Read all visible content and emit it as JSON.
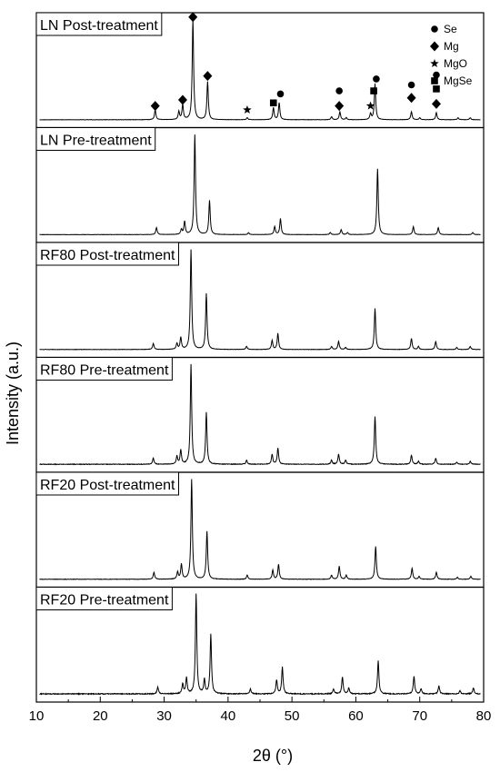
{
  "chart_data": {
    "type": "line",
    "xlabel": "2θ (°)",
    "ylabel": "Intensity (a.u.)",
    "xlim": [
      10,
      80
    ],
    "x_ticks": [
      10,
      20,
      30,
      40,
      50,
      60,
      70,
      80
    ],
    "y_ticks_shown": false,
    "grid": false,
    "legend": {
      "placement": "top-right",
      "entries": [
        {
          "name": "Se",
          "symbol": "circle"
        },
        {
          "name": "Mg",
          "symbol": "diamond"
        },
        {
          "name": "MgO",
          "symbol": "star"
        },
        {
          "name": "MgSe",
          "symbol": "square"
        }
      ]
    },
    "panels": [
      {
        "name": "LN Post-treatment",
        "noise": 0.006,
        "peaks": [
          {
            "x": 28.6,
            "h": 0.1
          },
          {
            "x": 32.3,
            "h": 0.08
          },
          {
            "x": 32.9,
            "h": 0.15
          },
          {
            "x": 34.5,
            "h": 1.0
          },
          {
            "x": 36.8,
            "h": 0.38
          },
          {
            "x": 43.0,
            "h": 0.02
          },
          {
            "x": 47.1,
            "h": 0.12
          },
          {
            "x": 48.0,
            "h": 0.17
          },
          {
            "x": 56.2,
            "h": 0.03
          },
          {
            "x": 57.5,
            "h": 0.08
          },
          {
            "x": 58.5,
            "h": 0.02
          },
          {
            "x": 62.3,
            "h": 0.06
          },
          {
            "x": 63.0,
            "h": 0.36
          },
          {
            "x": 68.7,
            "h": 0.08
          },
          {
            "x": 70.0,
            "h": 0.02
          },
          {
            "x": 72.6,
            "h": 0.07
          },
          {
            "x": 76.0,
            "h": 0.02
          },
          {
            "x": 77.9,
            "h": 0.02
          }
        ],
        "annotations": [
          {
            "symbol": "diamond",
            "x": 28.6,
            "y": 0.14
          },
          {
            "symbol": "diamond",
            "x": 32.9,
            "y": 0.2
          },
          {
            "symbol": "diamond",
            "x": 34.5,
            "y": 1.03
          },
          {
            "symbol": "diamond",
            "x": 36.8,
            "y": 0.44
          },
          {
            "symbol": "star",
            "x": 43.0,
            "y": 0.1
          },
          {
            "symbol": "square",
            "x": 47.1,
            "y": 0.17
          },
          {
            "symbol": "circle",
            "x": 48.2,
            "y": 0.26
          },
          {
            "symbol": "circle",
            "x": 57.4,
            "y": 0.29
          },
          {
            "symbol": "diamond",
            "x": 57.4,
            "y": 0.14
          },
          {
            "symbol": "star",
            "x": 62.3,
            "y": 0.14
          },
          {
            "symbol": "square",
            "x": 62.8,
            "y": 0.29
          },
          {
            "symbol": "circle",
            "x": 63.2,
            "y": 0.41
          },
          {
            "symbol": "circle",
            "x": 68.7,
            "y": 0.35
          },
          {
            "symbol": "diamond",
            "x": 68.7,
            "y": 0.22
          },
          {
            "symbol": "circle",
            "x": 72.6,
            "y": 0.45
          },
          {
            "symbol": "square",
            "x": 72.6,
            "y": 0.31
          },
          {
            "symbol": "diamond",
            "x": 72.6,
            "y": 0.16
          }
        ]
      },
      {
        "name": "LN Pre-treatment",
        "noise": 0.006,
        "peaks": [
          {
            "x": 28.8,
            "h": 0.07
          },
          {
            "x": 32.7,
            "h": 0.05
          },
          {
            "x": 33.2,
            "h": 0.13
          },
          {
            "x": 34.8,
            "h": 1.0
          },
          {
            "x": 37.1,
            "h": 0.34
          },
          {
            "x": 43.2,
            "h": 0.02
          },
          {
            "x": 47.3,
            "h": 0.08
          },
          {
            "x": 48.2,
            "h": 0.16
          },
          {
            "x": 56.0,
            "h": 0.02
          },
          {
            "x": 57.7,
            "h": 0.05
          },
          {
            "x": 58.7,
            "h": 0.02
          },
          {
            "x": 63.4,
            "h": 0.66
          },
          {
            "x": 69.0,
            "h": 0.08
          },
          {
            "x": 72.9,
            "h": 0.07
          },
          {
            "x": 78.3,
            "h": 0.02
          }
        ],
        "annotations": []
      },
      {
        "name": "RF80 Post-treatment",
        "noise": 0.007,
        "peaks": [
          {
            "x": 28.3,
            "h": 0.06
          },
          {
            "x": 32.0,
            "h": 0.06
          },
          {
            "x": 32.6,
            "h": 0.12
          },
          {
            "x": 34.2,
            "h": 1.0
          },
          {
            "x": 36.6,
            "h": 0.56
          },
          {
            "x": 42.9,
            "h": 0.03
          },
          {
            "x": 46.9,
            "h": 0.09
          },
          {
            "x": 47.8,
            "h": 0.16
          },
          {
            "x": 56.2,
            "h": 0.03
          },
          {
            "x": 57.3,
            "h": 0.08
          },
          {
            "x": 58.4,
            "h": 0.02
          },
          {
            "x": 63.0,
            "h": 0.41
          },
          {
            "x": 68.7,
            "h": 0.11
          },
          {
            "x": 69.8,
            "h": 0.03
          },
          {
            "x": 72.5,
            "h": 0.08
          },
          {
            "x": 75.8,
            "h": 0.02
          },
          {
            "x": 77.9,
            "h": 0.03
          }
        ],
        "annotations": []
      },
      {
        "name": "RF80 Pre-treatment",
        "noise": 0.012,
        "peaks": [
          {
            "x": 28.3,
            "h": 0.06
          },
          {
            "x": 32.0,
            "h": 0.08
          },
          {
            "x": 32.6,
            "h": 0.14
          },
          {
            "x": 34.2,
            "h": 1.0
          },
          {
            "x": 36.6,
            "h": 0.52
          },
          {
            "x": 42.9,
            "h": 0.04
          },
          {
            "x": 46.9,
            "h": 0.1
          },
          {
            "x": 47.8,
            "h": 0.16
          },
          {
            "x": 56.2,
            "h": 0.04
          },
          {
            "x": 57.3,
            "h": 0.1
          },
          {
            "x": 58.4,
            "h": 0.04
          },
          {
            "x": 63.0,
            "h": 0.48
          },
          {
            "x": 68.7,
            "h": 0.09
          },
          {
            "x": 69.8,
            "h": 0.03
          },
          {
            "x": 72.5,
            "h": 0.06
          },
          {
            "x": 75.8,
            "h": 0.02
          },
          {
            "x": 77.9,
            "h": 0.03
          }
        ],
        "annotations": []
      },
      {
        "name": "RF20 Post-treatment",
        "noise": 0.008,
        "peaks": [
          {
            "x": 28.4,
            "h": 0.07
          },
          {
            "x": 32.1,
            "h": 0.07
          },
          {
            "x": 32.7,
            "h": 0.15
          },
          {
            "x": 34.3,
            "h": 1.0
          },
          {
            "x": 36.7,
            "h": 0.48
          },
          {
            "x": 43.0,
            "h": 0.04
          },
          {
            "x": 47.0,
            "h": 0.09
          },
          {
            "x": 47.9,
            "h": 0.15
          },
          {
            "x": 56.2,
            "h": 0.04
          },
          {
            "x": 57.4,
            "h": 0.13
          },
          {
            "x": 58.5,
            "h": 0.04
          },
          {
            "x": 63.1,
            "h": 0.33
          },
          {
            "x": 68.8,
            "h": 0.11
          },
          {
            "x": 69.9,
            "h": 0.03
          },
          {
            "x": 72.6,
            "h": 0.07
          },
          {
            "x": 75.9,
            "h": 0.02
          },
          {
            "x": 78.0,
            "h": 0.03
          }
        ],
        "annotations": []
      },
      {
        "name": "RF20 Pre-treatment",
        "noise": 0.018,
        "peaks": [
          {
            "x": 29.0,
            "h": 0.07
          },
          {
            "x": 32.9,
            "h": 0.1
          },
          {
            "x": 33.5,
            "h": 0.16
          },
          {
            "x": 35.0,
            "h": 1.0
          },
          {
            "x": 36.3,
            "h": 0.14
          },
          {
            "x": 37.3,
            "h": 0.6
          },
          {
            "x": 43.5,
            "h": 0.05
          },
          {
            "x": 47.6,
            "h": 0.14
          },
          {
            "x": 48.5,
            "h": 0.27
          },
          {
            "x": 56.5,
            "h": 0.05
          },
          {
            "x": 57.9,
            "h": 0.17
          },
          {
            "x": 58.9,
            "h": 0.06
          },
          {
            "x": 63.5,
            "h": 0.33
          },
          {
            "x": 69.1,
            "h": 0.18
          },
          {
            "x": 70.2,
            "h": 0.05
          },
          {
            "x": 73.0,
            "h": 0.08
          },
          {
            "x": 76.3,
            "h": 0.03
          },
          {
            "x": 78.4,
            "h": 0.06
          }
        ],
        "annotations": []
      }
    ]
  }
}
